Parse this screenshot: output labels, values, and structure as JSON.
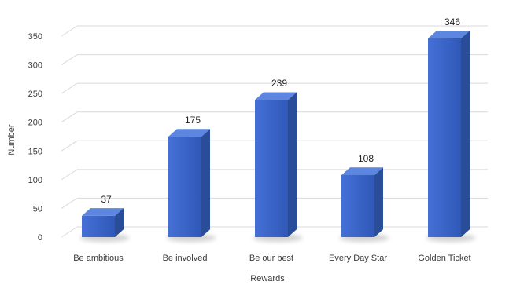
{
  "chart_data": {
    "type": "bar",
    "style": "3d-column",
    "categories": [
      "Be ambitious",
      "Be involved",
      "Be our best",
      "Every Day Star",
      "Golden Ticket"
    ],
    "values": [
      37,
      175,
      239,
      108,
      346
    ],
    "data_labels": [
      "37",
      "175",
      "239",
      "108",
      "346"
    ],
    "xlabel": "Rewards",
    "ylabel": "Number",
    "ylim": [
      0,
      350
    ],
    "yticks": [
      "0",
      "50",
      "100",
      "150",
      "200",
      "250",
      "300",
      "350"
    ],
    "grid": true,
    "legend": "none",
    "colors": {
      "bar_front": "#4570d6",
      "bar_front_dark": "#2f58b8",
      "bar_side": "#2a4d9a",
      "bar_top": "#5d86e0",
      "grid": "#d9d9d9"
    }
  }
}
